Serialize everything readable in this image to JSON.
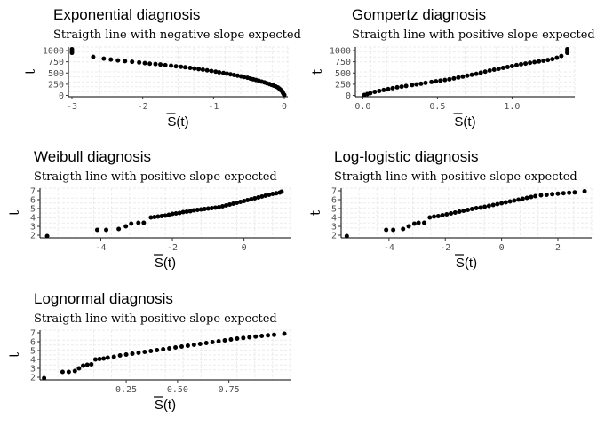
{
  "chart_data": [
    {
      "type": "scatter",
      "title": "Exponential diagnosis",
      "subtitle": "Straigth line with negative slope expected",
      "xlabel": "S(t)",
      "ylabel": "t",
      "xlim": [
        -3.05,
        0.05
      ],
      "ylim": [
        -30,
        1080
      ],
      "xticks": [
        -3,
        -2,
        -1,
        0
      ],
      "xtick_labels": [
        "-3",
        "-2",
        "-1",
        "0"
      ],
      "yticks": [
        0,
        250,
        500,
        750,
        1000
      ],
      "ytick_labels": [
        "0",
        "250",
        "500",
        "750",
        "1000"
      ],
      "points": [
        [
          -3.0,
          1030
        ],
        [
          -3.0,
          990
        ],
        [
          -3.0,
          950
        ],
        [
          -2.7,
          860
        ],
        [
          -2.55,
          820
        ],
        [
          -2.45,
          800
        ],
        [
          -2.35,
          780
        ],
        [
          -2.25,
          765
        ],
        [
          -2.15,
          750
        ],
        [
          -2.05,
          735
        ],
        [
          -1.97,
          720
        ],
        [
          -1.9,
          708
        ],
        [
          -1.82,
          700
        ],
        [
          -1.75,
          690
        ],
        [
          -1.68,
          676
        ],
        [
          -1.6,
          663
        ],
        [
          -1.53,
          650
        ],
        [
          -1.46,
          640
        ],
        [
          -1.4,
          628
        ],
        [
          -1.33,
          615
        ],
        [
          -1.27,
          600
        ],
        [
          -1.21,
          588
        ],
        [
          -1.15,
          574
        ],
        [
          -1.09,
          560
        ],
        [
          -1.03,
          545
        ],
        [
          -0.97,
          530
        ],
        [
          -0.92,
          515
        ],
        [
          -0.86,
          500
        ],
        [
          -0.81,
          485
        ],
        [
          -0.76,
          470
        ],
        [
          -0.71,
          455
        ],
        [
          -0.66,
          440
        ],
        [
          -0.61,
          425
        ],
        [
          -0.57,
          410
        ],
        [
          -0.52,
          393
        ],
        [
          -0.48,
          377
        ],
        [
          -0.44,
          360
        ],
        [
          -0.4,
          343
        ],
        [
          -0.36,
          326
        ],
        [
          -0.32,
          308
        ],
        [
          -0.28,
          290
        ],
        [
          -0.25,
          272
        ],
        [
          -0.21,
          254
        ],
        [
          -0.18,
          236
        ],
        [
          -0.15,
          218
        ],
        [
          -0.12,
          198
        ],
        [
          -0.09,
          176
        ],
        [
          -0.07,
          150
        ],
        [
          -0.05,
          120
        ],
        [
          -0.03,
          90
        ],
        [
          -0.02,
          60
        ],
        [
          -0.01,
          30
        ],
        [
          0.0,
          10
        ]
      ],
      "grid": true
    },
    {
      "type": "scatter",
      "title": "Gompertz diagnosis",
      "subtitle": "Straigth line with positive slope expected",
      "xlabel": "S(t)",
      "ylabel": "t",
      "xlim": [
        -0.05,
        1.42
      ],
      "ylim": [
        -30,
        1080
      ],
      "xticks": [
        0.0,
        0.5,
        1.0
      ],
      "xtick_labels": [
        "0.0",
        "0.5",
        "1.0"
      ],
      "yticks": [
        0,
        250,
        500,
        750,
        1000
      ],
      "ytick_labels": [
        "0",
        "250",
        "500",
        "750",
        "1000"
      ],
      "points": [
        [
          0.01,
          10
        ],
        [
          0.03,
          30
        ],
        [
          0.05,
          50
        ],
        [
          0.08,
          80
        ],
        [
          0.11,
          100
        ],
        [
          0.14,
          120
        ],
        [
          0.17,
          140
        ],
        [
          0.2,
          160
        ],
        [
          0.23,
          180
        ],
        [
          0.26,
          195
        ],
        [
          0.29,
          210
        ],
        [
          0.33,
          230
        ],
        [
          0.36,
          245
        ],
        [
          0.39,
          260
        ],
        [
          0.42,
          280
        ],
        [
          0.46,
          300
        ],
        [
          0.49,
          315
        ],
        [
          0.52,
          330
        ],
        [
          0.55,
          345
        ],
        [
          0.58,
          360
        ],
        [
          0.61,
          380
        ],
        [
          0.64,
          400
        ],
        [
          0.67,
          420
        ],
        [
          0.7,
          440
        ],
        [
          0.73,
          460
        ],
        [
          0.76,
          480
        ],
        [
          0.79,
          505
        ],
        [
          0.82,
          530
        ],
        [
          0.85,
          555
        ],
        [
          0.88,
          575
        ],
        [
          0.91,
          595
        ],
        [
          0.94,
          615
        ],
        [
          0.97,
          635
        ],
        [
          1.0,
          655
        ],
        [
          1.03,
          675
        ],
        [
          1.06,
          695
        ],
        [
          1.09,
          712
        ],
        [
          1.12,
          728
        ],
        [
          1.15,
          743
        ],
        [
          1.18,
          758
        ],
        [
          1.21,
          773
        ],
        [
          1.24,
          790
        ],
        [
          1.27,
          810
        ],
        [
          1.3,
          840
        ],
        [
          1.33,
          880
        ],
        [
          1.37,
          950
        ],
        [
          1.37,
          990
        ],
        [
          1.37,
          1030
        ]
      ],
      "grid": true
    },
    {
      "type": "scatter",
      "title": "Weibull diagnosis",
      "subtitle": "Straigth line with positive slope expected",
      "xlabel": "S(t)",
      "ylabel": "t",
      "xlim": [
        -5.7,
        1.3
      ],
      "ylim": [
        1.7,
        7.3
      ],
      "xticks": [
        -4,
        -2,
        0
      ],
      "xtick_labels": [
        "-4",
        "-2",
        "0"
      ],
      "yticks": [
        2,
        3,
        4,
        5,
        6,
        7
      ],
      "ytick_labels": [
        "2",
        "3",
        "4",
        "5",
        "6",
        "7"
      ],
      "points": [
        [
          -5.5,
          1.9
        ],
        [
          -4.1,
          2.6
        ],
        [
          -3.85,
          2.6
        ],
        [
          -3.5,
          2.7
        ],
        [
          -3.3,
          3.0
        ],
        [
          -3.15,
          3.3
        ],
        [
          -2.95,
          3.4
        ],
        [
          -2.8,
          3.4
        ],
        [
          -2.6,
          4.0
        ],
        [
          -2.5,
          4.05
        ],
        [
          -2.4,
          4.1
        ],
        [
          -2.3,
          4.15
        ],
        [
          -2.2,
          4.2
        ],
        [
          -2.1,
          4.3
        ],
        [
          -2.0,
          4.4
        ],
        [
          -1.9,
          4.45
        ],
        [
          -1.8,
          4.5
        ],
        [
          -1.7,
          4.6
        ],
        [
          -1.6,
          4.65
        ],
        [
          -1.5,
          4.7
        ],
        [
          -1.4,
          4.8
        ],
        [
          -1.3,
          4.85
        ],
        [
          -1.2,
          4.9
        ],
        [
          -1.1,
          4.95
        ],
        [
          -1.0,
          5.0
        ],
        [
          -0.9,
          5.05
        ],
        [
          -0.8,
          5.1
        ],
        [
          -0.7,
          5.15
        ],
        [
          -0.6,
          5.25
        ],
        [
          -0.5,
          5.35
        ],
        [
          -0.4,
          5.45
        ],
        [
          -0.3,
          5.55
        ],
        [
          -0.2,
          5.65
        ],
        [
          -0.1,
          5.75
        ],
        [
          0.0,
          5.85
        ],
        [
          0.1,
          5.95
        ],
        [
          0.2,
          6.05
        ],
        [
          0.3,
          6.15
        ],
        [
          0.4,
          6.25
        ],
        [
          0.5,
          6.35
        ],
        [
          0.6,
          6.45
        ],
        [
          0.7,
          6.55
        ],
        [
          0.8,
          6.65
        ],
        [
          0.9,
          6.72
        ],
        [
          1.0,
          6.8
        ],
        [
          1.05,
          6.9
        ]
      ],
      "grid": true
    },
    {
      "type": "scatter",
      "title": "Log-logistic diagnosis",
      "subtitle": "Straigth line with positive slope expected",
      "xlabel": "S(t)",
      "ylabel": "t",
      "xlim": [
        -5.7,
        3.2
      ],
      "ylim": [
        1.7,
        7.3
      ],
      "xticks": [
        -4,
        -2,
        0,
        2
      ],
      "xtick_labels": [
        "-4",
        "-2",
        "0",
        "2"
      ],
      "yticks": [
        2,
        3,
        4,
        5,
        6,
        7
      ],
      "ytick_labels": [
        "2",
        "3",
        "4",
        "5",
        "6",
        "7"
      ],
      "points": [
        [
          -5.5,
          1.9
        ],
        [
          -4.1,
          2.6
        ],
        [
          -3.85,
          2.6
        ],
        [
          -3.5,
          2.7
        ],
        [
          -3.3,
          3.0
        ],
        [
          -3.1,
          3.3
        ],
        [
          -2.95,
          3.4
        ],
        [
          -2.75,
          3.4
        ],
        [
          -2.55,
          4.0
        ],
        [
          -2.4,
          4.1
        ],
        [
          -2.25,
          4.15
        ],
        [
          -2.1,
          4.25
        ],
        [
          -1.95,
          4.35
        ],
        [
          -1.8,
          4.45
        ],
        [
          -1.65,
          4.55
        ],
        [
          -1.5,
          4.65
        ],
        [
          -1.35,
          4.75
        ],
        [
          -1.2,
          4.85
        ],
        [
          -1.05,
          4.95
        ],
        [
          -0.9,
          5.05
        ],
        [
          -0.75,
          5.1
        ],
        [
          -0.6,
          5.2
        ],
        [
          -0.45,
          5.3
        ],
        [
          -0.3,
          5.4
        ],
        [
          -0.15,
          5.5
        ],
        [
          0.0,
          5.6
        ],
        [
          0.15,
          5.7
        ],
        [
          0.3,
          5.8
        ],
        [
          0.45,
          5.9
        ],
        [
          0.6,
          6.0
        ],
        [
          0.75,
          6.1
        ],
        [
          0.9,
          6.2
        ],
        [
          1.05,
          6.3
        ],
        [
          1.2,
          6.4
        ],
        [
          1.4,
          6.5
        ],
        [
          1.6,
          6.55
        ],
        [
          1.8,
          6.62
        ],
        [
          2.0,
          6.68
        ],
        [
          2.2,
          6.73
        ],
        [
          2.4,
          6.78
        ],
        [
          2.6,
          6.82
        ],
        [
          2.95,
          6.95
        ]
      ],
      "grid": true
    },
    {
      "type": "scatter",
      "title": "Lognormal diagnosis",
      "subtitle": "Straigth line with positive slope expected",
      "xlabel": "S(t)",
      "ylabel": "t",
      "xlim": [
        -0.17,
        1.05
      ],
      "ylim": [
        1.7,
        7.3
      ],
      "xticks": [
        0.25,
        0.5,
        0.75
      ],
      "xtick_labels": [
        "0.25",
        "0.50",
        "0.75"
      ],
      "yticks": [
        2,
        3,
        4,
        5,
        6,
        7
      ],
      "ytick_labels": [
        "2",
        "3",
        "4",
        "5",
        "6",
        "7"
      ],
      "points": [
        [
          -0.15,
          1.9
        ],
        [
          -0.06,
          2.6
        ],
        [
          -0.03,
          2.6
        ],
        [
          0.0,
          2.7
        ],
        [
          0.02,
          3.0
        ],
        [
          0.04,
          3.3
        ],
        [
          0.06,
          3.4
        ],
        [
          0.08,
          3.45
        ],
        [
          0.1,
          4.0
        ],
        [
          0.12,
          4.05
        ],
        [
          0.14,
          4.1
        ],
        [
          0.16,
          4.2
        ],
        [
          0.19,
          4.3
        ],
        [
          0.22,
          4.45
        ],
        [
          0.25,
          4.55
        ],
        [
          0.28,
          4.65
        ],
        [
          0.31,
          4.75
        ],
        [
          0.34,
          4.85
        ],
        [
          0.37,
          4.95
        ],
        [
          0.4,
          5.05
        ],
        [
          0.43,
          5.15
        ],
        [
          0.46,
          5.25
        ],
        [
          0.49,
          5.35
        ],
        [
          0.52,
          5.45
        ],
        [
          0.55,
          5.55
        ],
        [
          0.58,
          5.65
        ],
        [
          0.61,
          5.75
        ],
        [
          0.64,
          5.85
        ],
        [
          0.67,
          5.95
        ],
        [
          0.7,
          6.05
        ],
        [
          0.73,
          6.15
        ],
        [
          0.76,
          6.25
        ],
        [
          0.79,
          6.35
        ],
        [
          0.82,
          6.42
        ],
        [
          0.85,
          6.5
        ],
        [
          0.88,
          6.58
        ],
        [
          0.91,
          6.65
        ],
        [
          0.94,
          6.72
        ],
        [
          0.97,
          6.78
        ],
        [
          1.02,
          6.9
        ]
      ],
      "grid": true
    }
  ]
}
